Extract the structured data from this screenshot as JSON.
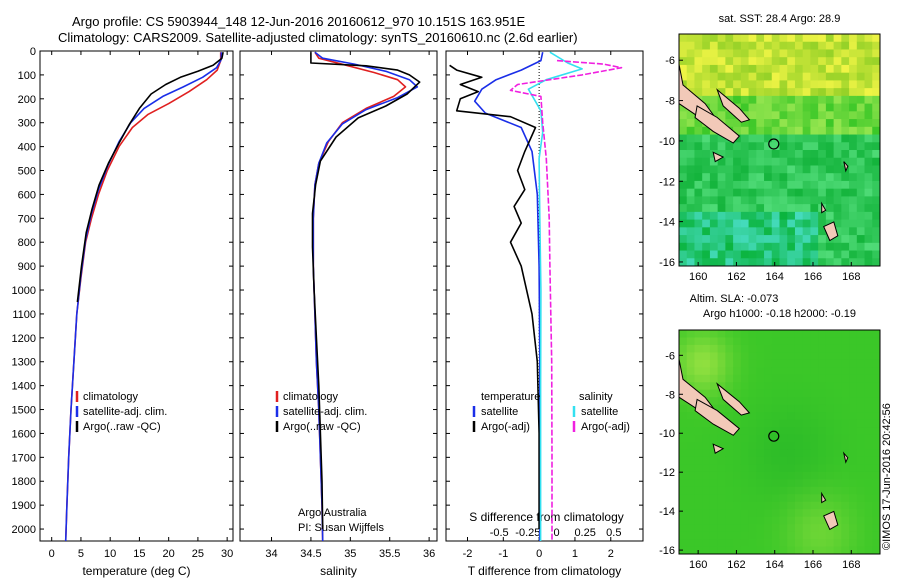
{
  "header": {
    "line1": "Argo profile: CS 5903944_148 12-Jun-2016 20160612_970 10.151S 163.951E",
    "line2": "Climatology: CARS2009. Satellite-adjusted climatology: synTS_20160610.nc (2.6d earlier)"
  },
  "depth_ticks": [
    0,
    100,
    200,
    300,
    400,
    500,
    600,
    700,
    800,
    900,
    1000,
    1100,
    1200,
    1300,
    1400,
    1500,
    1600,
    1700,
    1800,
    1900,
    2000
  ],
  "colors": {
    "clim": "#e02020",
    "sat": "#1a2ee8",
    "argo": "#000000",
    "sal_sat": "#33e0f0",
    "sal_argo": "#f020e0"
  },
  "chart_data": [
    {
      "type": "line",
      "xlabel": "temperature (deg C)",
      "xlim": [
        -2,
        31
      ],
      "xticks": [
        0,
        5,
        10,
        15,
        20,
        25,
        30
      ],
      "ylim": [
        0,
        2050
      ],
      "legend": [
        "climatology",
        "satellite-adj. clim.",
        "Argo(..raw -QC)"
      ],
      "series": [
        {
          "name": "climatology",
          "color": "clim",
          "points": [
            [
              28.9,
              5
            ],
            [
              28.9,
              40
            ],
            [
              28.3,
              80
            ],
            [
              26.5,
              120
            ],
            [
              23.5,
              170
            ],
            [
              20.0,
              220
            ],
            [
              16.5,
              265
            ],
            [
              13.8,
              320
            ],
            [
              11.5,
              400
            ],
            [
              9.5,
              500
            ],
            [
              8.0,
              600
            ],
            [
              6.8,
              700
            ],
            [
              5.8,
              800
            ],
            [
              5.0,
              950
            ],
            [
              4.3,
              1100
            ],
            [
              3.8,
              1300
            ],
            [
              3.3,
              1500
            ],
            [
              2.9,
              1700
            ],
            [
              2.6,
              1900
            ],
            [
              2.4,
              2050
            ]
          ]
        },
        {
          "name": "satellite-adj. clim.",
          "color": "sat",
          "points": [
            [
              29.0,
              5
            ],
            [
              29.0,
              35
            ],
            [
              28.2,
              70
            ],
            [
              25.8,
              110
            ],
            [
              22.5,
              150
            ],
            [
              19.0,
              190
            ],
            [
              15.8,
              240
            ],
            [
              13.5,
              300
            ],
            [
              11.5,
              380
            ],
            [
              9.6,
              480
            ],
            [
              8.0,
              580
            ],
            [
              6.8,
              680
            ],
            [
              5.8,
              790
            ],
            [
              5.0,
              940
            ],
            [
              4.3,
              1100
            ],
            [
              3.8,
              1300
            ],
            [
              3.3,
              1500
            ],
            [
              2.9,
              1700
            ],
            [
              2.6,
              1900
            ],
            [
              2.4,
              2050
            ]
          ]
        },
        {
          "name": "Argo(..raw -QC)",
          "color": "argo",
          "points": [
            [
              29.3,
              5
            ],
            [
              29.1,
              30
            ],
            [
              27.6,
              60
            ],
            [
              25.0,
              85
            ],
            [
              22.0,
              110
            ],
            [
              19.5,
              140
            ],
            [
              17.0,
              180
            ],
            [
              15.0,
              240
            ],
            [
              13.2,
              310
            ],
            [
              11.4,
              390
            ],
            [
              9.7,
              470
            ],
            [
              8.1,
              560
            ],
            [
              6.9,
              660
            ],
            [
              5.9,
              760
            ],
            [
              5.1,
              900
            ],
            [
              4.4,
              1050
            ]
          ]
        }
      ]
    },
    {
      "type": "line",
      "xlabel": "salinity",
      "xlim": [
        33.6,
        36.1
      ],
      "xticks": [
        34,
        34.5,
        35,
        35.5,
        36
      ],
      "tick_labels": [
        "34",
        "34.5",
        "35",
        "35.5",
        "36"
      ],
      "ylim": [
        0,
        2050
      ],
      "legend": [
        "climatology",
        "satellite-adj. clim.",
        "Argo(..raw -QC)"
      ],
      "footer": [
        "Argo Australia",
        "PI: Susan Wijffels"
      ],
      "series": [
        {
          "name": "climatology",
          "color": "clim",
          "points": [
            [
              34.55,
              5
            ],
            [
              34.6,
              30
            ],
            [
              34.95,
              60
            ],
            [
              35.3,
              90
            ],
            [
              35.6,
              120
            ],
            [
              35.7,
              150
            ],
            [
              35.55,
              190
            ],
            [
              35.2,
              240
            ],
            [
              34.9,
              300
            ],
            [
              34.72,
              380
            ],
            [
              34.6,
              470
            ],
            [
              34.55,
              560
            ],
            [
              34.53,
              700
            ],
            [
              34.53,
              900
            ],
            [
              34.55,
              1100
            ],
            [
              34.57,
              1300
            ],
            [
              34.6,
              1500
            ],
            [
              34.62,
              1700
            ],
            [
              34.64,
              1900
            ],
            [
              34.65,
              2050
            ]
          ]
        },
        {
          "name": "satellite-adj. clim.",
          "color": "sat",
          "points": [
            [
              34.55,
              5
            ],
            [
              34.65,
              30
            ],
            [
              35.05,
              55
            ],
            [
              35.45,
              85
            ],
            [
              35.75,
              120
            ],
            [
              35.85,
              150
            ],
            [
              35.6,
              195
            ],
            [
              35.2,
              245
            ],
            [
              34.9,
              305
            ],
            [
              34.7,
              385
            ],
            [
              34.6,
              470
            ],
            [
              34.55,
              560
            ],
            [
              34.53,
              700
            ],
            [
              34.53,
              900
            ],
            [
              34.55,
              1100
            ],
            [
              34.57,
              1300
            ],
            [
              34.6,
              1500
            ],
            [
              34.62,
              1700
            ],
            [
              34.64,
              1900
            ],
            [
              34.65,
              2050
            ]
          ]
        },
        {
          "name": "Argo(..raw -QC)",
          "color": "argo",
          "points": [
            [
              34.5,
              5
            ],
            [
              34.5,
              50
            ],
            [
              35.2,
              62
            ],
            [
              35.6,
              80
            ],
            [
              35.75,
              100
            ],
            [
              35.88,
              130
            ],
            [
              35.72,
              180
            ],
            [
              35.45,
              230
            ],
            [
              35.1,
              280
            ],
            [
              34.82,
              360
            ],
            [
              34.62,
              460
            ],
            [
              34.56,
              560
            ],
            [
              34.52,
              680
            ],
            [
              34.52,
              820
            ],
            [
              34.54,
              1000
            ],
            [
              34.57,
              1200
            ],
            [
              34.6,
              1400
            ],
            [
              34.62,
              1600
            ],
            [
              34.64,
              1800
            ],
            [
              34.65,
              2000
            ]
          ]
        }
      ]
    },
    {
      "type": "line",
      "xlabel": "T difference from climatology",
      "xlabel_top": "S difference from climatology",
      "xlim": [
        -2.6,
        2.9
      ],
      "xticks": [
        -2,
        -1,
        0,
        1,
        2
      ],
      "top_ticks": [
        -0.5,
        -0.25,
        0,
        0.25,
        0.5
      ],
      "top_tick_labels": [
        "-0.5",
        "-0.25",
        "0",
        "0.25",
        "0.5"
      ],
      "ylim": [
        0,
        2050
      ],
      "legend_left_title": "temperature",
      "legend_left": [
        "satellite",
        "Argo(-adj)"
      ],
      "legend_right_title": "salinity",
      "legend_right": [
        "satellite",
        "Argo(-adj)"
      ],
      "series": [
        {
          "name": "temperature satellite",
          "color": "sat",
          "points": [
            [
              0.1,
              5
            ],
            [
              0.05,
              40
            ],
            [
              -0.5,
              80
            ],
            [
              -1.2,
              120
            ],
            [
              -1.6,
              160
            ],
            [
              -1.8,
              210
            ],
            [
              -1.5,
              260
            ],
            [
              -0.5,
              320
            ],
            [
              -0.2,
              420
            ],
            [
              -0.05,
              600
            ],
            [
              0,
              900
            ],
            [
              0.02,
              1300
            ],
            [
              0.02,
              1700
            ],
            [
              0.02,
              2050
            ]
          ]
        },
        {
          "name": "temperature Argo(-adj)",
          "color": "argo",
          "points": [
            [
              -2.5,
              60
            ],
            [
              -2.3,
              80
            ],
            [
              -1.6,
              110
            ],
            [
              -2.2,
              140
            ],
            [
              -1.7,
              170
            ],
            [
              -2.2,
              200
            ],
            [
              -2.3,
              250
            ],
            [
              -0.8,
              275
            ],
            [
              -0.1,
              320
            ],
            [
              -0.4,
              420
            ],
            [
              -0.6,
              500
            ],
            [
              -0.4,
              580
            ],
            [
              -0.7,
              650
            ],
            [
              -0.5,
              720
            ],
            [
              -0.8,
              800
            ],
            [
              -0.5,
              900
            ],
            [
              -0.2,
              1100
            ],
            [
              -0.05,
              1300
            ],
            [
              0,
              1600
            ],
            [
              0,
              2000
            ]
          ]
        },
        {
          "name": "salinity satellite",
          "color": "sal_sat",
          "points": [
            [
              0.3,
              5
            ],
            [
              0.8,
              50
            ],
            [
              1.2,
              75
            ],
            [
              0.2,
              120
            ],
            [
              -0.3,
              160
            ],
            [
              0.05,
              250
            ],
            [
              0.1,
              340
            ],
            [
              0.0,
              450
            ],
            [
              0.02,
              700
            ],
            [
              0.05,
              1000
            ],
            [
              0.04,
              1400
            ],
            [
              0.04,
              1800
            ],
            [
              0.04,
              2050
            ]
          ]
        },
        {
          "name": "salinity Argo(-adj)",
          "color": "sal_argo",
          "points": [
            [
              0.5,
              40
            ],
            [
              1.8,
              55
            ],
            [
              2.3,
              70
            ],
            [
              1.2,
              100
            ],
            [
              -0.6,
              140
            ],
            [
              -0.8,
              165
            ],
            [
              0.05,
              190
            ],
            [
              0.1,
              300
            ],
            [
              0.2,
              450
            ],
            [
              0.28,
              700
            ],
            [
              0.3,
              900
            ],
            [
              0.35,
              1300
            ],
            [
              0.36,
              1700
            ],
            [
              0.36,
              2050
            ]
          ]
        }
      ]
    },
    {
      "type": "heatmap",
      "title": "sat. SST: 28.4  Argo: 28.9",
      "xticks": [
        160,
        162,
        164,
        166,
        168
      ],
      "yticks": [
        -6,
        -8,
        -10,
        -12,
        -14,
        -16
      ],
      "xlim": [
        159,
        169.5
      ],
      "ylim": [
        -16.2,
        -4.7
      ],
      "marker": [
        163.951,
        -10.151
      ]
    },
    {
      "type": "heatmap",
      "title": "Altim. SLA: -0.073",
      "subtitle": "Argo h1000: -0.18  h2000: -0.19",
      "xticks": [
        160,
        162,
        164,
        166,
        168
      ],
      "yticks": [
        -6,
        -8,
        -10,
        -12,
        -14,
        -16
      ],
      "xlim": [
        159,
        169.5
      ],
      "ylim": [
        -16.2,
        -4.7
      ],
      "marker": [
        163.951,
        -10.151
      ]
    }
  ],
  "side_note": "©IMOS 17-Jun-2016 20:42:56"
}
